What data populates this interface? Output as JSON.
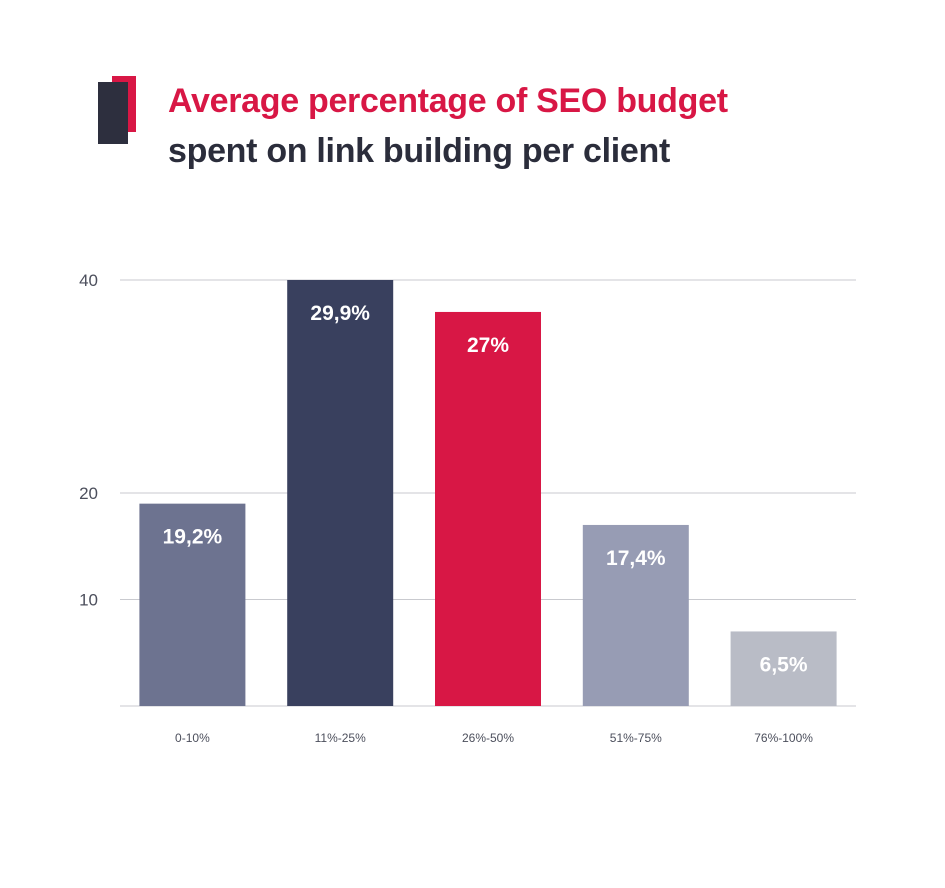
{
  "header": {
    "title_line1": "Average percentage of SEO budget",
    "title_line2": "spent on link building per client",
    "logo_icon": "brand-bars-icon"
  },
  "colors": {
    "title_accent": "#d81745",
    "title_dark": "#2b2d3b",
    "gridline": "#c9cacf",
    "axis_text": "#4c4f5c"
  },
  "chart_data": {
    "type": "bar",
    "categories": [
      "0-10%",
      "11%-25%",
      "26%-50%",
      "51%-75%",
      "76%-100%"
    ],
    "values": [
      19.2,
      29.9,
      27,
      17.4,
      6.5
    ],
    "data_labels": [
      "19,2%",
      "29,9%",
      "27%",
      "17,4%",
      "6,5%"
    ],
    "bar_colors": [
      "#6d7390",
      "#39405e",
      "#d81745",
      "#979cb4",
      "#b9bcc6"
    ],
    "y_ticks": [
      {
        "label": "40",
        "value": 40
      },
      {
        "label": "20",
        "value": 20
      },
      {
        "label": "10",
        "value": 10
      }
    ],
    "bar_heights_axis_units": [
      19,
      40,
      37,
      17,
      7
    ],
    "ylim": [
      10,
      40
    ],
    "grid": true,
    "title": "Average percentage of SEO budget spent on link building per client",
    "xlabel": "",
    "ylabel": ""
  }
}
